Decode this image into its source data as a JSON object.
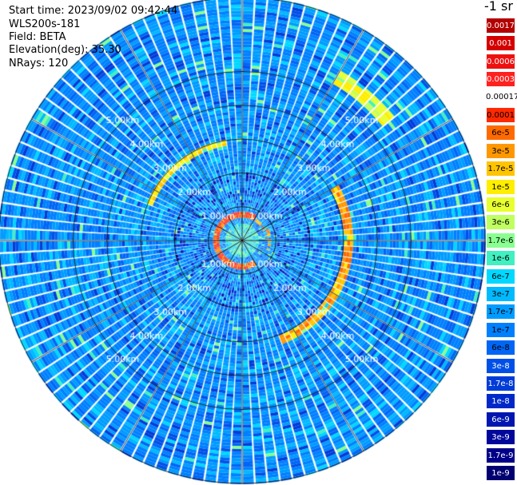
{
  "header": {
    "start_time": "Start time: 2023/09/02 09:42:44",
    "instrument": "WLS200s-181",
    "field": "Field: BETA",
    "elevation": "Elevation(deg): 35.30",
    "nrays": "NRays: 120"
  },
  "chart_data": {
    "type": "heatmap",
    "projection": "polar (PPI scan)",
    "field": "BETA",
    "units": "-1 sr",
    "n_rays": 120,
    "elevation_deg": 35.3,
    "range_rings_km": [
      1,
      2,
      3,
      4,
      5
    ],
    "ring_labels": [
      "1.00km",
      "2.00km",
      "3.00km",
      "4.00km",
      "5.00km"
    ],
    "grid": true,
    "colorbar": {
      "title": "-1 sr",
      "labels": [
        "0.0017",
        "0.001",
        "0.0006",
        "0.0003",
        "0.00017",
        "0.0001",
        "6e-5",
        "3e-5",
        "1.7e-5",
        "1e-5",
        "6e-6",
        "3e-6",
        "1.7e-6",
        "1e-6",
        "6e-7",
        "3e-7",
        "1.7e-7",
        "1e-7",
        "6e-8",
        "3e-8",
        "1.7e-8",
        "1e-8",
        "6e-9",
        "3e-9",
        "1.7e-9",
        "1e-9"
      ],
      "colors": [
        "#b30000",
        "#d40000",
        "#ee1010",
        "#ff2020",
        "#ffffff",
        "#ff2a00",
        "#ff6a00",
        "#ff9800",
        "#ffc400",
        "#ffee00",
        "#e8ff30",
        "#c0ff60",
        "#88ff90",
        "#40f0c0",
        "#00d8ff",
        "#00baff",
        "#009cff",
        "#0080ff",
        "#0066f5",
        "#0050e8",
        "#003cd8",
        "#0028c8",
        "#0016b0",
        "#00089c",
        "#000088",
        "#000070"
      ]
    },
    "features": {
      "background_level": "1e-7",
      "inner_ring": {
        "range_km": 0.8,
        "level": "1e-4 to 6e-5"
      },
      "outer_arc_east": {
        "range_km": 3.0,
        "level": "3e-5"
      },
      "outer_arc_northwest": {
        "range_km": 2.9,
        "level": "1e-5"
      }
    }
  }
}
